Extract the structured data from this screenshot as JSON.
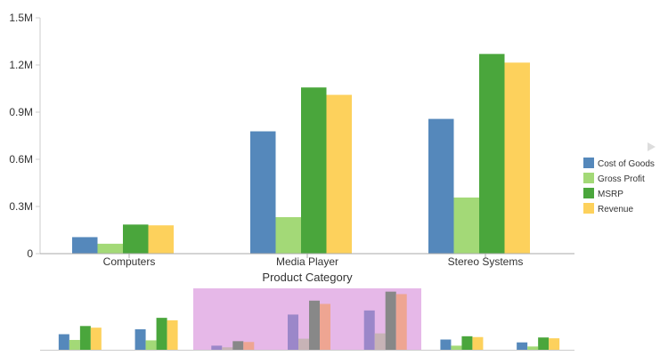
{
  "chart_data": {
    "type": "bar",
    "title": "",
    "xlabel": "Product Category",
    "ylabel": "",
    "categories": [
      "Computers",
      "Media Player",
      "Stereo Systems"
    ],
    "y_ticks": [
      "0",
      "0.3M",
      "0.6M",
      "0.9M",
      "1.2M",
      "1.5M"
    ],
    "ylim": [
      0,
      1500000
    ],
    "grid": false,
    "legend_position": "right",
    "series": [
      {
        "name": "Cost of Goods",
        "color": "#5588bb",
        "values": [
          105000,
          778000,
          857000
        ]
      },
      {
        "name": "Gross Profit",
        "color": "#a3d977",
        "values": [
          63000,
          232000,
          357000
        ]
      },
      {
        "name": "MSRP",
        "color": "#4aa63c",
        "values": [
          185000,
          1057000,
          1270000
        ]
      },
      {
        "name": "Revenue",
        "color": "#fdd15c",
        "values": [
          180000,
          1010000,
          1215000
        ]
      }
    ]
  },
  "overview": {
    "highlight_color": "#e6b8e8",
    "groups": [
      {
        "values": [
          0.38,
          0.24,
          0.58,
          0.54
        ],
        "colors": [
          "#5588bb",
          "#a3d977",
          "#4aa63c",
          "#fdd15c"
        ]
      },
      {
        "values": [
          0.5,
          0.23,
          0.78,
          0.72
        ],
        "colors": [
          "#5588bb",
          "#a3d977",
          "#4aa63c",
          "#fdd15c"
        ]
      },
      {
        "values": [
          0.1,
          0.06,
          0.21,
          0.19
        ],
        "colors": [
          "#9b87c9",
          "#c7b3b6",
          "#888888",
          "#eea592"
        ]
      },
      {
        "values": [
          0.86,
          0.27,
          1.2,
          1.12
        ],
        "colors": [
          "#9b87c9",
          "#c7b3b6",
          "#888888",
          "#eea592"
        ]
      },
      {
        "values": [
          0.96,
          0.4,
          1.42,
          1.36
        ],
        "colors": [
          "#9b87c9",
          "#c7b3b6",
          "#888888",
          "#eea592"
        ]
      },
      {
        "values": [
          0.25,
          0.1,
          0.33,
          0.31
        ],
        "colors": [
          "#5588bb",
          "#a3d977",
          "#4aa63c",
          "#fdd15c"
        ]
      },
      {
        "values": [
          0.18,
          0.08,
          0.3,
          0.28
        ],
        "colors": [
          "#5588bb",
          "#a3d977",
          "#4aa63c",
          "#fdd15c"
        ]
      }
    ]
  }
}
